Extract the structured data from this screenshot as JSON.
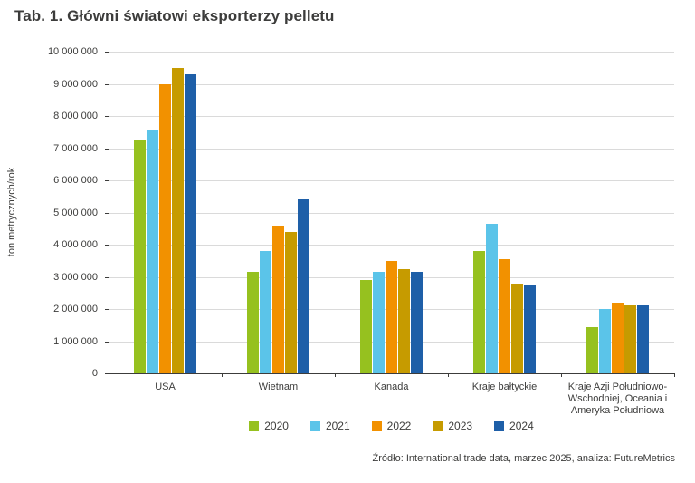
{
  "chart_data": {
    "type": "bar",
    "title": "Tab. 1. Główni światowi eksporterzy pelletu",
    "ylabel": "ton metrycznych/rok",
    "xlabel": "",
    "ylim": [
      0,
      10000000
    ],
    "ytick_step": 1000000,
    "grid": true,
    "legend_position": "bottom",
    "categories": [
      "USA",
      "Wietnam",
      "Kanada",
      "Kraje bałtyckie",
      "Kraje Azji Południowo-Wschodniej, Oceania i Ameryka Południowa"
    ],
    "series": [
      {
        "name": "2020",
        "color": "#96c11f",
        "values": [
          7250000,
          3150000,
          2900000,
          3800000,
          1450000
        ]
      },
      {
        "name": "2021",
        "color": "#5bc4e9",
        "values": [
          7550000,
          3800000,
          3150000,
          4650000,
          2000000
        ]
      },
      {
        "name": "2022",
        "color": "#f29100",
        "values": [
          9000000,
          4600000,
          3500000,
          3550000,
          2200000
        ]
      },
      {
        "name": "2023",
        "color": "#c69b00",
        "values": [
          9500000,
          4400000,
          3250000,
          2800000,
          2100000
        ]
      },
      {
        "name": "2024",
        "color": "#1e5fa8",
        "values": [
          9300000,
          5400000,
          3150000,
          2750000,
          2100000
        ]
      }
    ],
    "source": "Źródło: International trade data, marzec 2025, analiza: FutureMetrics"
  }
}
